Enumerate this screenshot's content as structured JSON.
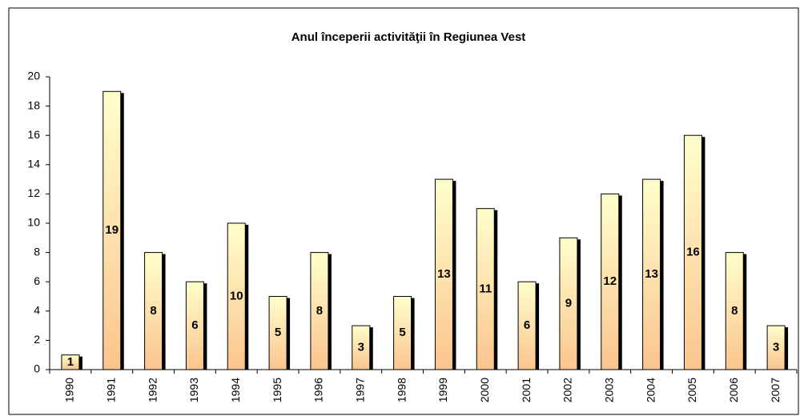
{
  "chart_data": {
    "type": "bar",
    "title": "Anul începerii activităţii în Regiunea Vest",
    "categories": [
      "1990",
      "1991",
      "1992",
      "1993",
      "1994",
      "1995",
      "1996",
      "1997",
      "1998",
      "1999",
      "2000",
      "2001",
      "2002",
      "2003",
      "2004",
      "2005",
      "2006",
      "2007"
    ],
    "values": [
      1,
      19,
      8,
      6,
      10,
      5,
      8,
      3,
      5,
      13,
      11,
      6,
      9,
      12,
      13,
      16,
      8,
      3
    ],
    "color": [
      "#ffffcc",
      "#fbc48e"
    ],
    "ylim": [
      0,
      20
    ],
    "yticks": [
      0,
      2,
      4,
      6,
      8,
      10,
      12,
      14,
      16,
      18,
      20
    ],
    "grid": false
  }
}
